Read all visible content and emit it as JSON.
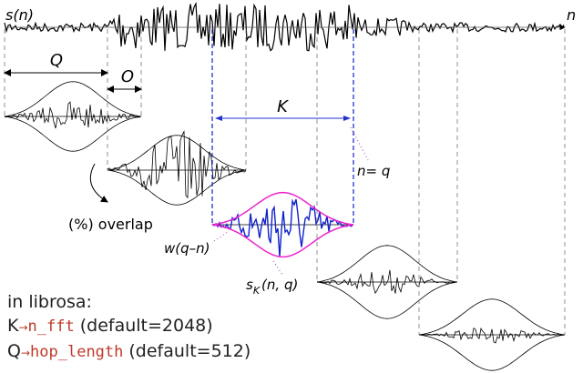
{
  "signal": {
    "label": "s(n)",
    "axis_label": "n"
  },
  "annotations": {
    "hop": "Q",
    "overlap_width": "O",
    "window_length": "K",
    "position": "n= q",
    "overlap": "(%) overlap",
    "window": "w(q–n)",
    "segment": {
      "base": "s",
      "subscript": "K",
      "args": "(n, q)"
    }
  },
  "librosa": {
    "heading": "in librosa:",
    "lines": [
      {
        "symbol": "K",
        "arrow": "→",
        "param": "n_fft",
        "default": "(default=2048)"
      },
      {
        "symbol": "Q",
        "arrow": "→",
        "param": "hop_length",
        "default": "(default=512)"
      }
    ]
  }
}
